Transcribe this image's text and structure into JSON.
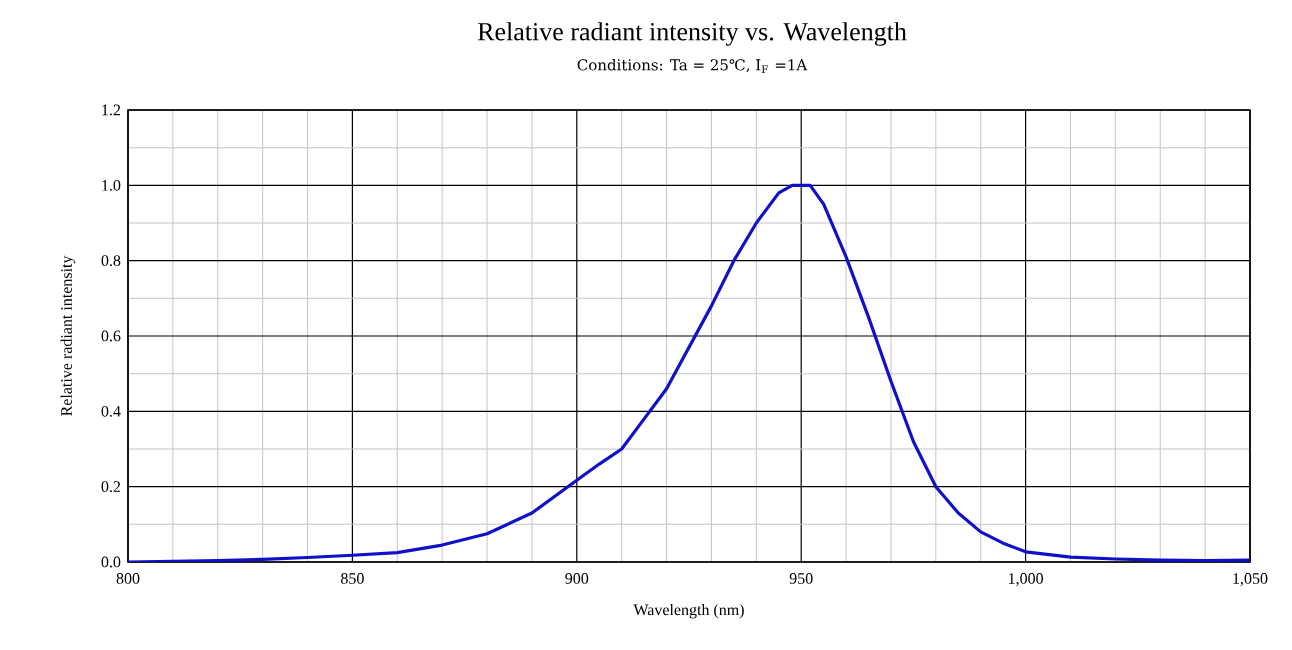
{
  "chart_data": {
    "type": "line",
    "title": "Relative radiant intensity vs. Wavelength",
    "subtitle": "Conditions: Ta = 25℃, I$_{F}$ =1A",
    "xlabel": "Wavelength (nm)",
    "ylabel": "Relative radiant intensity",
    "x": [
      800,
      810,
      820,
      830,
      840,
      850,
      860,
      870,
      880,
      890,
      900,
      905,
      910,
      915,
      920,
      925,
      930,
      935,
      940,
      945,
      948,
      950,
      952,
      955,
      960,
      965,
      970,
      975,
      980,
      985,
      990,
      995,
      1000,
      1010,
      1020,
      1030,
      1040,
      1050
    ],
    "series": [
      {
        "color": "#1010c8",
        "values": [
          0.0,
          0.002,
          0.004,
          0.007,
          0.012,
          0.018,
          0.025,
          0.045,
          0.075,
          0.13,
          0.217,
          0.26,
          0.3,
          0.38,
          0.46,
          0.57,
          0.68,
          0.8,
          0.9,
          0.98,
          1.0,
          1.0,
          1.0,
          0.95,
          0.81,
          0.65,
          0.48,
          0.32,
          0.2,
          0.13,
          0.08,
          0.05,
          0.027,
          0.013,
          0.008,
          0.005,
          0.004,
          0.005
        ]
      }
    ],
    "xlim": [
      800,
      1050
    ],
    "xticks": [
      800,
      850,
      900,
      950,
      {
        "value": 1000,
        "label": "1,000"
      },
      {
        "value": 1050,
        "label": "1,050"
      }
    ],
    "ylim": [
      0,
      1.2
    ],
    "yticks": [
      {
        "value": 0,
        "label": "0.0"
      },
      0.2,
      0.4,
      0.6,
      0.8,
      {
        "value": 1.0,
        "label": "1.0"
      },
      1.2
    ],
    "grid": true,
    "legend": false,
    "marker": "none",
    "line_style": "solid"
  }
}
